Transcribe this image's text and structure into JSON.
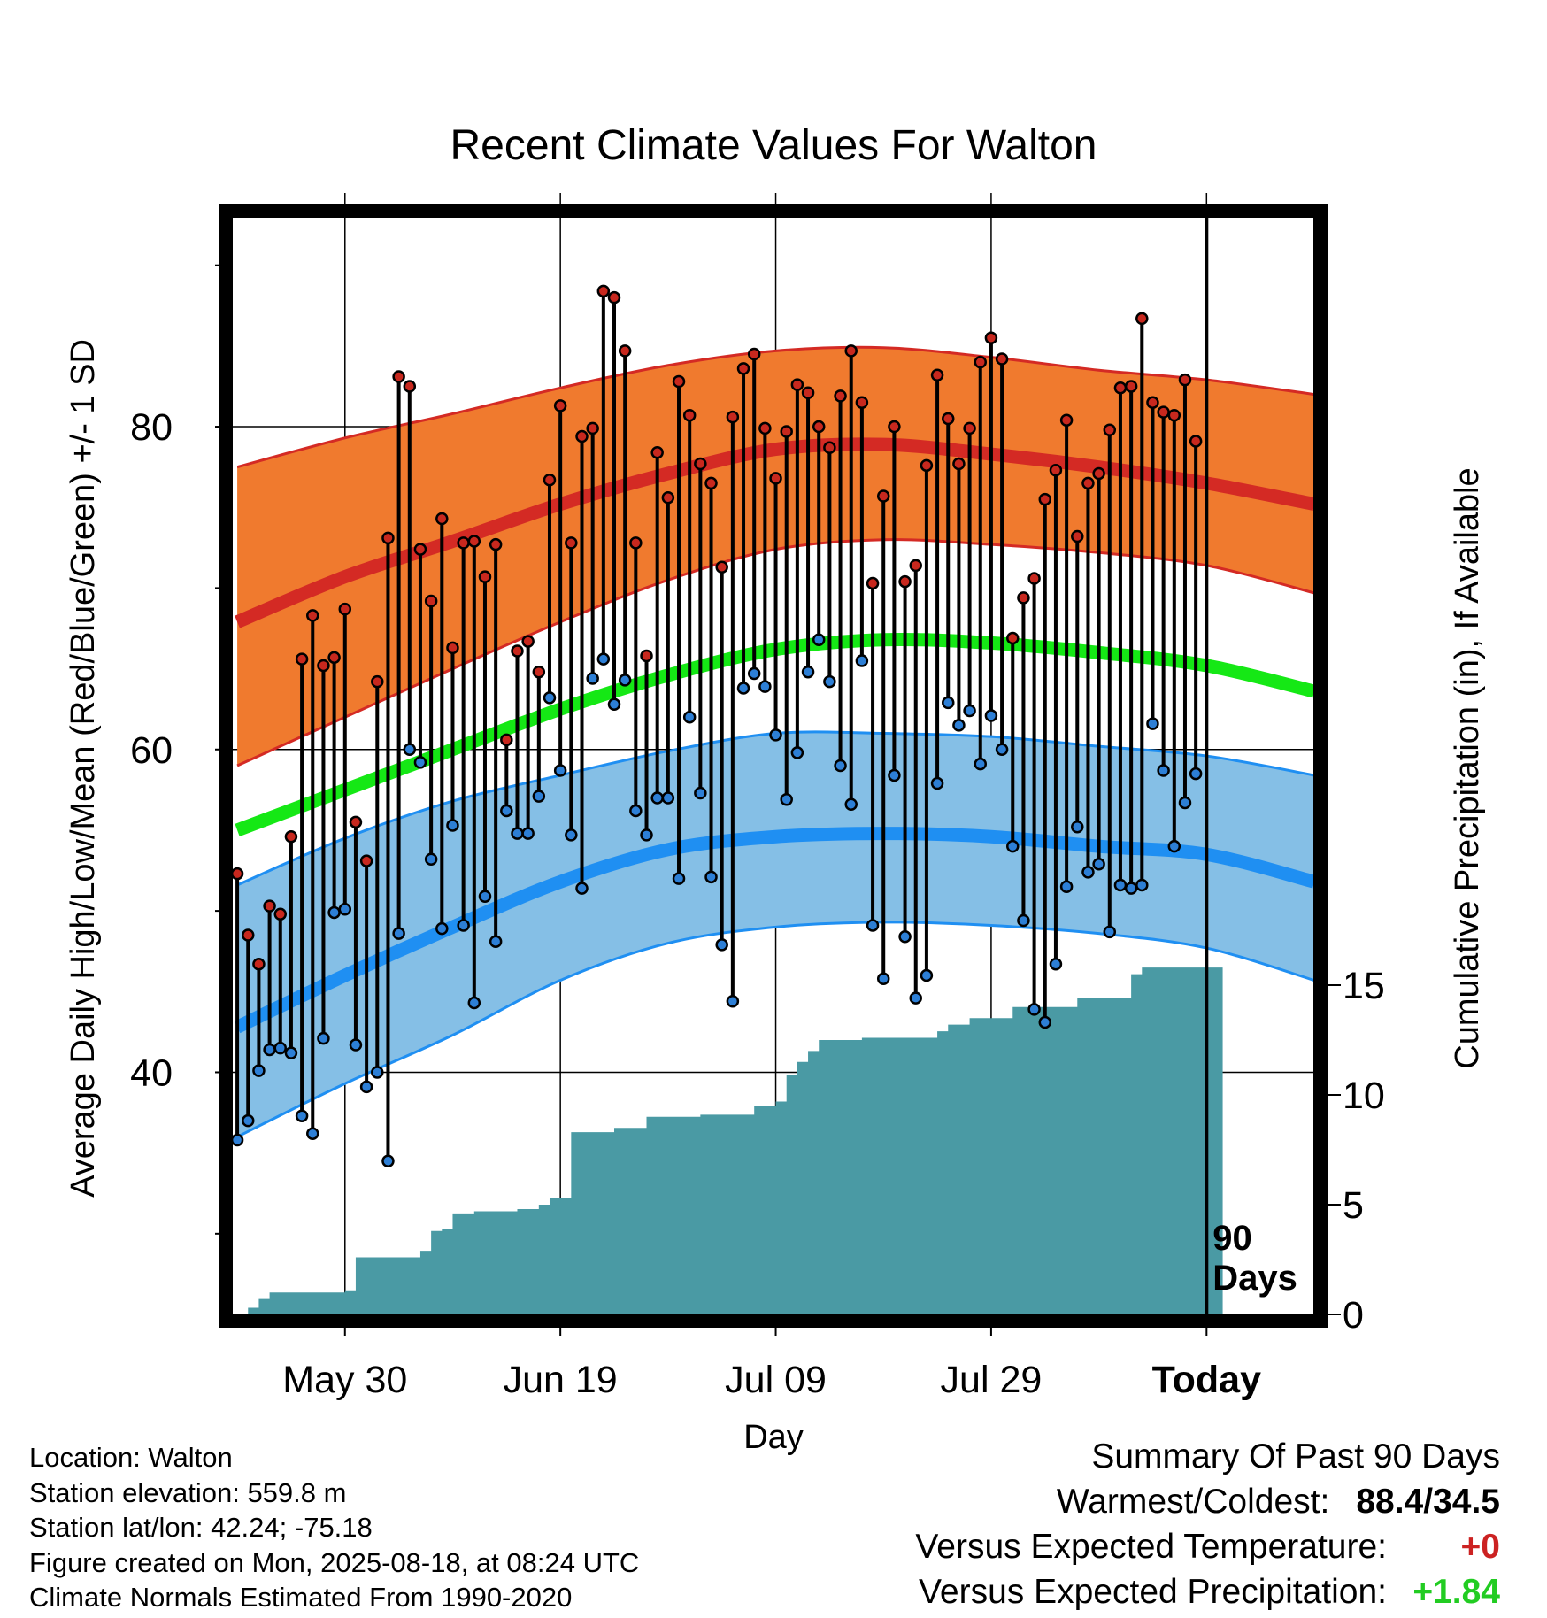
{
  "chart_data": {
    "type": "line",
    "title": "Recent Climate Values For Walton",
    "xlabel": "Day",
    "ylabel": "Average Daily High/Low/Mean (Red/Blue/Green) +/- 1 SD",
    "y2label": "Cumulative Precipitation (in), If Available",
    "x_tick_labels": [
      "May 30",
      "Jun 19",
      "Jul 09",
      "Jul 29",
      "Today"
    ],
    "x_tick_days": [
      10,
      30,
      50,
      70,
      90
    ],
    "y_ticks": [
      "40",
      "60",
      "80"
    ],
    "y2_ticks": [
      "0",
      "5",
      "10",
      "15"
    ],
    "ylim": [
      25,
      93
    ],
    "y2lim": [
      0,
      50
    ],
    "xlim": [
      -0.5,
      100
    ],
    "marker_label": "90 Days",
    "marker_day": 90,
    "grid": true,
    "colors": {
      "high_band": "#f07a2e",
      "high_normal": "#d42a24",
      "low_band": "#85bfe6",
      "low_normal": "#1f8ff2",
      "mean_normal": "#15e815",
      "precip": "#4a9aa4",
      "high_point": "#c8281e",
      "low_point": "#2d7fd6"
    },
    "normals": {
      "day": [
        0,
        10,
        20,
        30,
        40,
        50,
        60,
        70,
        80,
        90,
        100
      ],
      "high_upper": [
        77.5,
        79.3,
        80.8,
        82.4,
        83.8,
        84.7,
        84.9,
        84.3,
        83.5,
        82.9,
        82
      ],
      "high_mean": [
        67.9,
        70.7,
        72.9,
        75.2,
        77.1,
        78.6,
        78.9,
        78.3,
        77.5,
        76.5,
        75.2
      ],
      "high_lower": [
        59,
        62,
        65,
        67.9,
        70.5,
        72.4,
        73,
        72.7,
        72.2,
        71.4,
        69.7
      ],
      "mean": [
        55,
        57.5,
        60,
        62.5,
        64.6,
        66.2,
        66.8,
        66.6,
        66,
        65.2,
        63.6
      ],
      "low_upper": [
        51.6,
        54.5,
        56.8,
        58.4,
        59.9,
        61,
        61,
        60.8,
        60.2,
        59.6,
        58.4
      ],
      "low_mean": [
        42.8,
        46,
        49,
        51.8,
        53.8,
        54.6,
        54.8,
        54.6,
        54,
        53.5,
        51.8
      ],
      "low_lower": [
        36,
        39.3,
        42.3,
        45.7,
        48,
        49,
        49.3,
        49.1,
        48.6,
        47.7,
        45.7
      ]
    },
    "series": [
      {
        "name": "High",
        "values": [
          52.3,
          48.5,
          46.7,
          50.3,
          49.8,
          54.6,
          65.6,
          68.3,
          65.2,
          65.7,
          68.7,
          55.5,
          53.1,
          64.2,
          73.1,
          83.1,
          82.5,
          72.4,
          69.2,
          74.3,
          66.3,
          72.8,
          72.9,
          70.7,
          72.7,
          60.6,
          66.1,
          66.7,
          64.8,
          76.7,
          81.3,
          72.8,
          79.4,
          79.9,
          88.4,
          88.0,
          84.7,
          72.8,
          65.8,
          78.4,
          75.6,
          82.8,
          80.7,
          77.7,
          76.5,
          71.3,
          80.6,
          83.6,
          84.5,
          79.9,
          76.8,
          79.7,
          82.6,
          82.1,
          80.0,
          78.7,
          81.9,
          84.7,
          81.5,
          70.3,
          75.7,
          80.0,
          70.4,
          71.4,
          77.6,
          83.2,
          80.5,
          77.7,
          79.9,
          84.0,
          85.5,
          84.2,
          66.9,
          69.4,
          70.6,
          75.5,
          77.3,
          80.4,
          73.2,
          76.5,
          77.1,
          79.8,
          82.4,
          82.5,
          86.7,
          81.5,
          80.9,
          80.7,
          82.9,
          79.1
        ]
      },
      {
        "name": "Low",
        "values": [
          35.8,
          37.0,
          40.1,
          41.4,
          41.5,
          41.2,
          37.3,
          36.2,
          42.1,
          49.9,
          50.1,
          41.7,
          39.1,
          40.0,
          34.5,
          48.6,
          60.0,
          59.2,
          53.2,
          48.9,
          55.3,
          49.1,
          44.3,
          50.9,
          48.1,
          56.2,
          54.8,
          54.8,
          57.1,
          63.2,
          58.7,
          54.7,
          51.4,
          64.4,
          65.6,
          62.8,
          64.3,
          56.2,
          54.7,
          57.0,
          57.0,
          52.0,
          62.0,
          57.3,
          52.1,
          47.9,
          44.4,
          63.8,
          64.7,
          63.9,
          60.9,
          56.9,
          59.8,
          64.8,
          66.8,
          64.2,
          59.0,
          56.6,
          65.5,
          49.1,
          45.8,
          58.4,
          48.4,
          44.6,
          46.0,
          57.9,
          62.9,
          61.5,
          62.4,
          59.1,
          62.1,
          60.0,
          54.0,
          49.4,
          43.9,
          43.1,
          46.7,
          51.5,
          55.2,
          52.4,
          52.9,
          48.7,
          51.6,
          51.4,
          51.6,
          61.6,
          58.7,
          54.0,
          56.7,
          58.5
        ]
      },
      {
        "name": "Cumulative Precipitation",
        "step": true,
        "x": [
          0,
          1,
          2,
          3,
          10,
          11,
          12,
          17,
          18,
          19,
          20,
          21,
          22,
          26,
          28,
          29,
          30,
          31,
          32,
          33,
          35,
          37,
          38,
          42,
          43,
          47,
          48,
          50,
          51,
          52,
          53,
          54,
          55,
          56,
          58,
          60,
          63,
          65,
          66,
          67,
          68,
          72,
          73,
          74,
          78,
          79,
          82,
          83,
          84,
          91.5
        ],
        "values": [
          0,
          0.3,
          0.7,
          1.0,
          1.1,
          2.6,
          2.6,
          2.9,
          3.8,
          3.9,
          4.6,
          4.6,
          4.7,
          4.8,
          5.0,
          5.3,
          5.3,
          8.3,
          8.3,
          8.3,
          8.5,
          8.5,
          9.0,
          9.0,
          9.1,
          9.1,
          9.5,
          9.7,
          10.9,
          11.5,
          12.0,
          12.5,
          12.5,
          12.5,
          12.6,
          12.6,
          12.6,
          12.9,
          13.2,
          13.2,
          13.5,
          14.0,
          14.0,
          14.0,
          14.4,
          14.4,
          14.4,
          15.5,
          15.8,
          15.8
        ]
      }
    ]
  },
  "info": [
    "Location: Walton",
    "Station elevation: 559.8 m",
    "Station lat/lon: 42.24; -75.18",
    "Figure created on Mon, 2025-08-18, at 08:24 UTC",
    "Climate Normals Estimated From 1990-2020"
  ],
  "summary": {
    "title": "Summary Of Past 90 Days",
    "warmest_coldest_label": "Warmest/Coldest:",
    "warmest_coldest_value": "88.4/34.5",
    "temp_label": "Versus Expected Temperature:",
    "temp_value": "+0",
    "precip_label": "Versus Expected Precipitation:",
    "precip_value": "+1.84"
  }
}
